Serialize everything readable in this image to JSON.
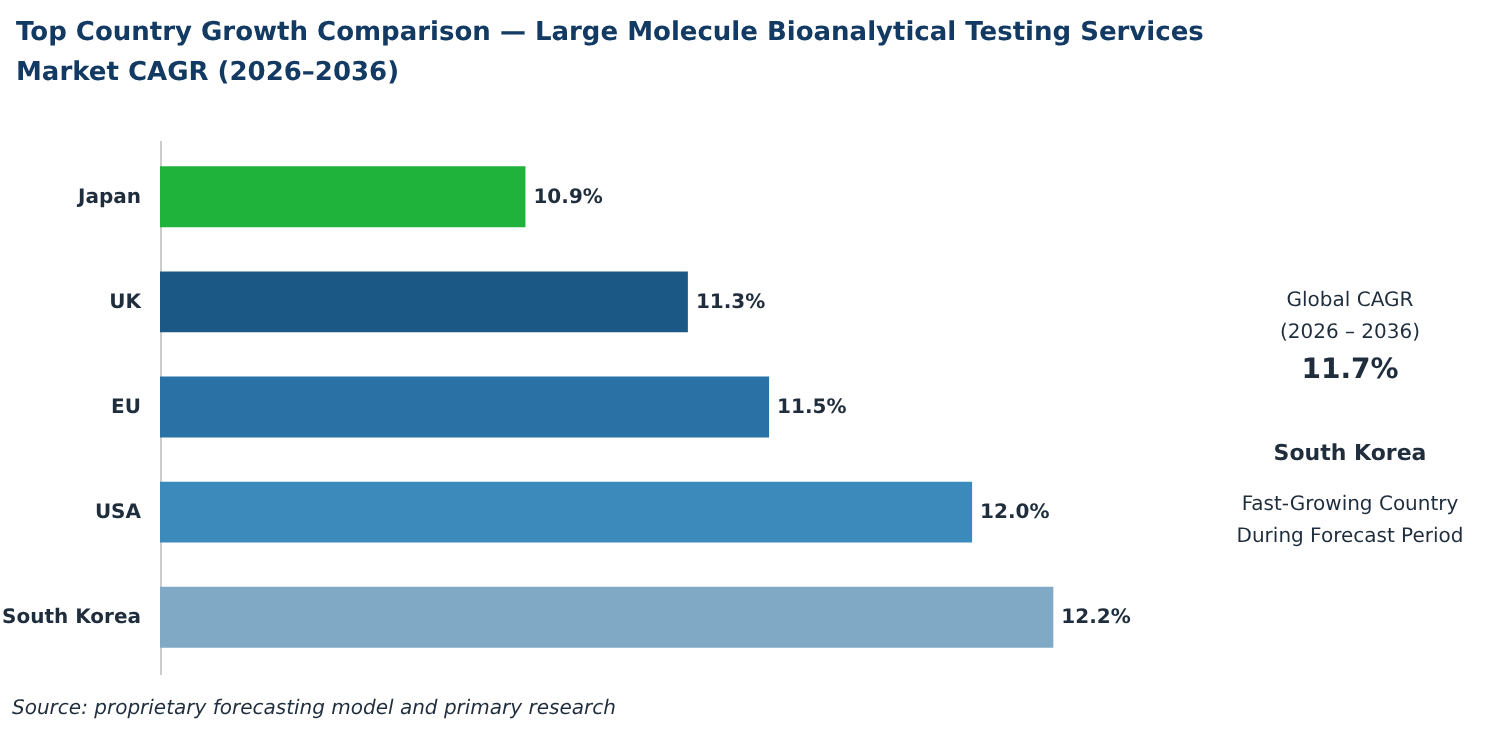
{
  "chart_data": {
    "type": "bar",
    "orientation": "horizontal",
    "title": "Top Country Growth Comparison — Large Molecule Bioanalytical Testing Services Market CAGR (2026–2036)",
    "categories": [
      "Japan",
      "UK",
      "EU",
      "USA",
      "South Korea"
    ],
    "values": [
      10.9,
      11.3,
      11.5,
      12.0,
      12.2
    ],
    "colors": [
      "#1fb33b",
      "#1c5886",
      "#2a71a6",
      "#3c89bb",
      "#7fa9c4"
    ],
    "value_labels": [
      "10.9%",
      "11.3%",
      "11.5%",
      "12.0%",
      "12.2%"
    ],
    "xlim": [
      10,
      13.3
    ],
    "tick_labels": "y",
    "annotations": [
      "Source: proprietary forecasting model and primary research",
      "Global CAGR",
      "(2026 – 2036)",
      "11.7%",
      "South Korea",
      "Fast-Growing Country",
      "During Forecast Period"
    ]
  }
}
